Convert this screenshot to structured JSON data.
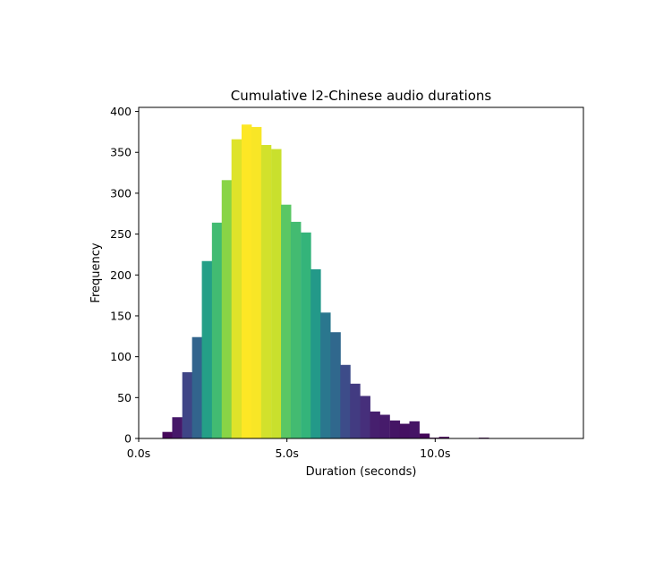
{
  "chart_data": {
    "type": "bar",
    "title": "Cumulative l2-Chinese audio durations",
    "xlabel": "Duration (seconds)",
    "ylabel": "Frequency",
    "xlim": [
      0,
      15
    ],
    "ylim": [
      0,
      405
    ],
    "bin_width": 0.333,
    "x_ticks": [
      {
        "value": 0,
        "label": "0.0s"
      },
      {
        "value": 5,
        "label": "5.0s"
      },
      {
        "value": 10,
        "label": "10.0s"
      }
    ],
    "y_ticks": [
      0,
      50,
      100,
      150,
      200,
      250,
      300,
      350,
      400
    ],
    "bins_start": [
      0.8,
      1.13,
      1.47,
      1.8,
      2.13,
      2.47,
      2.8,
      3.13,
      3.47,
      3.8,
      4.13,
      4.47,
      4.8,
      5.13,
      5.47,
      5.8,
      6.13,
      6.47,
      6.8,
      7.13,
      7.47,
      7.8,
      8.13,
      8.47,
      8.8,
      9.13,
      9.47,
      9.8,
      10.13,
      10.47,
      10.8,
      11.13,
      11.47,
      11.8
    ],
    "values": [
      8,
      26,
      81,
      124,
      217,
      264,
      316,
      366,
      384,
      381,
      359,
      354,
      286,
      265,
      252,
      207,
      154,
      130,
      90,
      67,
      52,
      33,
      29,
      22,
      18,
      21,
      6,
      1,
      2,
      0,
      0,
      0,
      1,
      0
    ],
    "colormap": "viridis",
    "grid": false
  }
}
